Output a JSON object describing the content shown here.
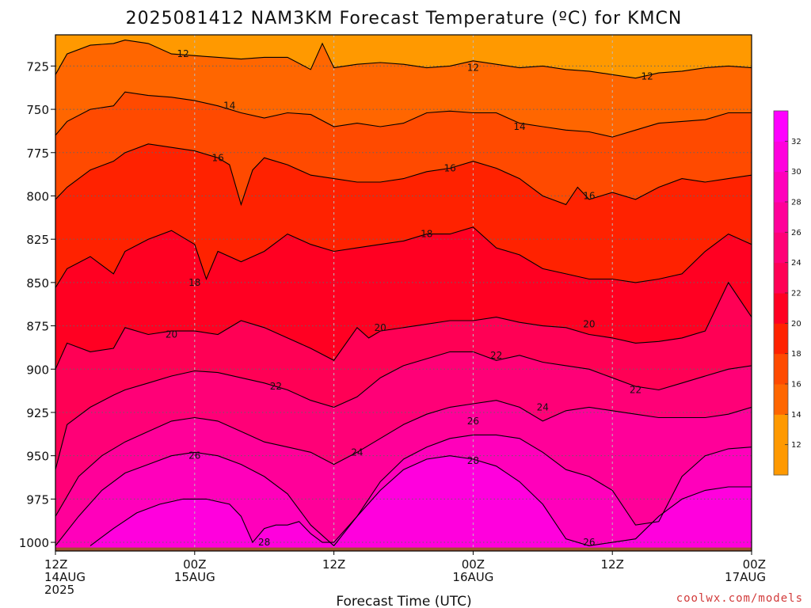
{
  "title": "2025081412 NAM3KM Forecast Temperature (ºC) for KMCN",
  "credit": "coolwx.com/models",
  "xlabel": "Forecast Time (UTC)",
  "colors": {
    "band_12": "#ff9900",
    "band_14": "#ff6600",
    "band_16": "#ff4a00",
    "band_18": "#ff2200",
    "band_20": "#ff0022",
    "band_22": "#ff0055",
    "band_24": "#ff0077",
    "band_26": "#ff0099",
    "band_28": "#ff00bb",
    "band_30": "#ff00dd",
    "band_32": "#ff00ff",
    "ground": "#a0522d",
    "contour": "#000000",
    "grid": "#666666"
  },
  "chart_data": {
    "type": "heatmap",
    "title": "2025081412 NAM3KM Forecast Temperature (ºC) for KMCN",
    "xlabel": "Forecast Time (UTC)",
    "ylabel": "",
    "x_ticks": [
      {
        "hour": 0,
        "lines": [
          "12Z",
          "14AUG",
          "2025"
        ]
      },
      {
        "hour": 12,
        "lines": [
          "00Z",
          "15AUG"
        ]
      },
      {
        "hour": 24,
        "lines": [
          "12Z"
        ]
      },
      {
        "hour": 36,
        "lines": [
          "00Z",
          "16AUG"
        ]
      },
      {
        "hour": 48,
        "lines": [
          "12Z"
        ]
      },
      {
        "hour": 60,
        "lines": [
          "00Z",
          "17AUG"
        ]
      }
    ],
    "xlim": [
      0,
      60
    ],
    "ylim": [
      1005,
      707
    ],
    "y_ticks": [
      725,
      750,
      775,
      800,
      825,
      850,
      875,
      900,
      925,
      950,
      975,
      1000
    ],
    "colorbar_ticks": [
      12,
      14,
      16,
      18,
      20,
      22,
      24,
      26,
      28,
      30,
      32
    ],
    "contour_levels": [
      12,
      14,
      16,
      18,
      20,
      22,
      24,
      26,
      28
    ],
    "contours": [
      {
        "level": 12,
        "x": [
          0,
          1,
          3,
          5,
          6,
          8,
          10,
          12,
          14,
          16,
          18,
          20,
          22,
          23,
          24,
          26,
          28,
          30,
          32,
          34,
          36,
          38,
          40,
          42,
          44,
          46,
          48,
          50,
          52,
          54,
          56,
          58,
          60
        ],
        "p": [
          730,
          718,
          713,
          712,
          710,
          712,
          718,
          719,
          720,
          721,
          720,
          720,
          727,
          712,
          726,
          724,
          723,
          724,
          726,
          725,
          722,
          724,
          726,
          725,
          727,
          728,
          730,
          732,
          729,
          728,
          726,
          725,
          726
        ],
        "labels": [
          {
            "x": 11,
            "p": 718
          },
          {
            "x": 36,
            "p": 726
          },
          {
            "x": 51,
            "p": 731
          }
        ]
      },
      {
        "level": 14,
        "x": [
          0,
          1,
          3,
          5,
          6,
          8,
          10,
          12,
          14,
          16,
          18,
          20,
          22,
          24,
          26,
          28,
          30,
          32,
          34,
          36,
          38,
          40,
          42,
          44,
          46,
          48,
          50,
          52,
          54,
          56,
          58,
          60
        ],
        "p": [
          765,
          757,
          750,
          748,
          740,
          742,
          743,
          745,
          748,
          752,
          755,
          752,
          753,
          760,
          758,
          760,
          758,
          752,
          751,
          752,
          752,
          758,
          760,
          762,
          763,
          766,
          762,
          758,
          757,
          756,
          752,
          752
        ],
        "labels": [
          {
            "x": 15,
            "p": 748
          },
          {
            "x": 40,
            "p": 760
          }
        ]
      },
      {
        "level": 16,
        "x": [
          0,
          1,
          3,
          5,
          6,
          8,
          10,
          12,
          14,
          15,
          16,
          17,
          18,
          20,
          22,
          24,
          26,
          28,
          30,
          32,
          34,
          36,
          38,
          40,
          42,
          44,
          45,
          46,
          48,
          50,
          52,
          54,
          56,
          58,
          60
        ],
        "p": [
          802,
          795,
          785,
          780,
          775,
          770,
          772,
          774,
          778,
          782,
          805,
          785,
          778,
          782,
          788,
          790,
          792,
          792,
          790,
          786,
          784,
          780,
          784,
          790,
          800,
          805,
          795,
          802,
          798,
          802,
          795,
          790,
          792,
          790,
          788
        ],
        "labels": [
          {
            "x": 14,
            "p": 778
          },
          {
            "x": 34,
            "p": 784
          },
          {
            "x": 46,
            "p": 800
          }
        ]
      },
      {
        "level": 18,
        "x": [
          0,
          1,
          3,
          5,
          6,
          8,
          10,
          12,
          13,
          14,
          16,
          18,
          20,
          22,
          24,
          26,
          28,
          30,
          32,
          34,
          36,
          38,
          40,
          42,
          44,
          46,
          48,
          50,
          52,
          54,
          56,
          58,
          60
        ],
        "p": [
          853,
          842,
          835,
          845,
          832,
          825,
          820,
          828,
          848,
          832,
          838,
          832,
          822,
          828,
          832,
          830,
          828,
          826,
          822,
          822,
          818,
          830,
          834,
          842,
          845,
          848,
          848,
          850,
          848,
          845,
          832,
          822,
          828
        ],
        "labels": [
          {
            "x": 32,
            "p": 822
          },
          {
            "x": 12,
            "p": 850
          }
        ]
      },
      {
        "level": 20,
        "x": [
          0,
          1,
          3,
          5,
          6,
          8,
          10,
          12,
          14,
          16,
          18,
          20,
          22,
          24,
          26,
          27,
          28,
          30,
          32,
          34,
          36,
          38,
          40,
          42,
          44,
          46,
          48,
          50,
          52,
          54,
          56,
          58,
          60
        ],
        "p": [
          900,
          885,
          890,
          888,
          876,
          880,
          878,
          878,
          880,
          872,
          876,
          882,
          888,
          895,
          876,
          882,
          878,
          876,
          874,
          872,
          872,
          870,
          873,
          875,
          876,
          880,
          882,
          885,
          884,
          882,
          878,
          850,
          870
        ],
        "labels": [
          {
            "x": 10,
            "p": 880
          },
          {
            "x": 28,
            "p": 876
          },
          {
            "x": 46,
            "p": 874
          }
        ]
      },
      {
        "level": 22,
        "x": [
          0,
          1,
          3,
          5,
          6,
          8,
          10,
          12,
          14,
          16,
          18,
          20,
          22,
          24,
          26,
          28,
          30,
          32,
          34,
          36,
          38,
          40,
          42,
          44,
          46,
          48,
          50,
          52,
          54,
          56,
          58,
          60
        ],
        "p": [
          958,
          932,
          922,
          915,
          912,
          908,
          904,
          901,
          902,
          905,
          908,
          912,
          918,
          922,
          916,
          905,
          898,
          894,
          890,
          890,
          895,
          892,
          896,
          898,
          900,
          905,
          910,
          912,
          908,
          904,
          900,
          898
        ],
        "labels": [
          {
            "x": 19,
            "p": 910
          },
          {
            "x": 38,
            "p": 892
          },
          {
            "x": 50,
            "p": 912
          }
        ]
      },
      {
        "level": 24,
        "x": [
          0,
          2,
          4,
          6,
          8,
          10,
          12,
          14,
          16,
          18,
          20,
          22,
          24,
          26,
          28,
          30,
          32,
          34,
          36,
          38,
          40,
          42,
          44,
          46,
          48,
          50,
          52,
          54,
          56,
          58,
          60
        ],
        "p": [
          985,
          962,
          950,
          942,
          936,
          930,
          928,
          930,
          936,
          942,
          945,
          948,
          955,
          948,
          940,
          932,
          926,
          922,
          920,
          918,
          922,
          930,
          924,
          922,
          924,
          926,
          928,
          928,
          928,
          926,
          922
        ],
        "labels": [
          {
            "x": 26,
            "p": 948
          },
          {
            "x": 42,
            "p": 922
          }
        ]
      },
      {
        "level": 26,
        "x": [
          0,
          2,
          4,
          6,
          8,
          10,
          12,
          14,
          16,
          18,
          20,
          22,
          24,
          26,
          28,
          30,
          32,
          34,
          36,
          38,
          40,
          42,
          44,
          46,
          48,
          50,
          52,
          54,
          56,
          58,
          60
        ],
        "p": [
          1002,
          985,
          970,
          960,
          955,
          950,
          948,
          950,
          955,
          962,
          972,
          990,
          1002,
          985,
          965,
          952,
          945,
          940,
          938,
          938,
          940,
          948,
          958,
          962,
          970,
          990,
          988,
          962,
          950,
          946,
          945
        ],
        "labels": [
          {
            "x": 12,
            "p": 950
          },
          {
            "x": 36,
            "p": 930
          },
          {
            "x": 46,
            "p": 1000
          }
        ]
      },
      {
        "level": 28,
        "x": [
          3,
          5,
          7,
          9,
          11,
          13,
          15,
          16,
          17,
          18,
          19,
          20,
          21,
          22,
          23,
          24,
          26,
          28,
          30,
          32,
          34,
          36,
          38,
          40,
          42,
          44,
          46,
          48,
          50,
          52,
          54,
          56,
          58,
          60
        ],
        "p": [
          1002,
          992,
          983,
          978,
          975,
          975,
          978,
          985,
          1000,
          992,
          990,
          990,
          988,
          995,
          1000,
          1000,
          985,
          970,
          958,
          952,
          950,
          952,
          956,
          965,
          978,
          998,
          1002,
          1000,
          998,
          985,
          975,
          970,
          968,
          968
        ],
        "labels": [
          {
            "x": 18,
            "p": 1000
          },
          {
            "x": 36,
            "p": 953
          }
        ]
      }
    ],
    "ground_p": 1003
  }
}
